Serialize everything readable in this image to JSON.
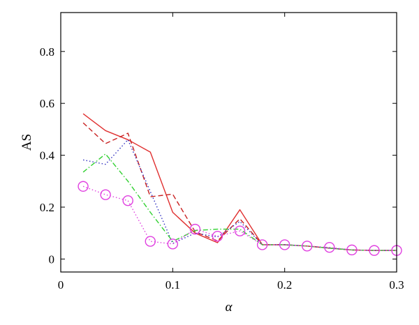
{
  "chart_data": {
    "type": "line",
    "xlabel": "α",
    "ylabel": "AS",
    "xlim": [
      0,
      0.3
    ],
    "ylim": [
      -0.05,
      0.95
    ],
    "xticks": [
      0,
      0.1,
      0.2,
      0.3
    ],
    "xtick_labels": [
      "0",
      "0.1",
      "0.2",
      "0.3"
    ],
    "yticks": [
      0,
      0.2,
      0.4,
      0.6,
      0.8
    ],
    "ytick_labels": [
      "0",
      "0.2",
      "0.4",
      "0.6",
      "0.8"
    ],
    "grid": false,
    "legend": "none",
    "x": [
      0.02,
      0.04,
      0.06,
      0.08,
      0.1,
      0.12,
      0.14,
      0.16,
      0.18,
      0.2,
      0.22,
      0.24,
      0.26,
      0.28,
      0.3
    ],
    "series": [
      {
        "color": "#e03030",
        "dash": "solid",
        "marker": "none",
        "values": [
          0.56,
          0.495,
          0.46,
          0.412,
          0.18,
          0.1,
          0.063,
          0.19,
          0.055,
          0.055,
          0.05,
          0.042,
          0.035,
          0.033,
          0.033
        ]
      },
      {
        "color": "#c82020",
        "dash": "dashed",
        "marker": "none",
        "values": [
          0.525,
          0.445,
          0.485,
          0.24,
          0.25,
          0.105,
          0.07,
          0.155,
          0.055,
          0.055,
          0.05,
          0.042,
          0.035,
          0.033,
          0.033
        ]
      },
      {
        "color": "#3030c0",
        "dash": "dotted",
        "marker": "none",
        "values": [
          0.382,
          0.365,
          0.46,
          0.26,
          0.06,
          0.1,
          0.085,
          0.145,
          0.055,
          0.055,
          0.05,
          0.042,
          0.035,
          0.033,
          0.033
        ]
      },
      {
        "color": "#30d030",
        "dash": "dashdot",
        "marker": "none",
        "values": [
          0.335,
          0.405,
          0.3,
          0.18,
          0.068,
          0.11,
          0.115,
          0.115,
          0.055,
          0.055,
          0.05,
          0.042,
          0.035,
          0.033,
          0.033
        ]
      },
      {
        "color": "#e040e0",
        "dash": "dotted",
        "marker": "circle",
        "values": [
          0.28,
          0.248,
          0.225,
          0.068,
          0.058,
          0.115,
          0.088,
          0.108,
          0.055,
          0.055,
          0.05,
          0.045,
          0.035,
          0.033,
          0.033
        ]
      }
    ]
  }
}
